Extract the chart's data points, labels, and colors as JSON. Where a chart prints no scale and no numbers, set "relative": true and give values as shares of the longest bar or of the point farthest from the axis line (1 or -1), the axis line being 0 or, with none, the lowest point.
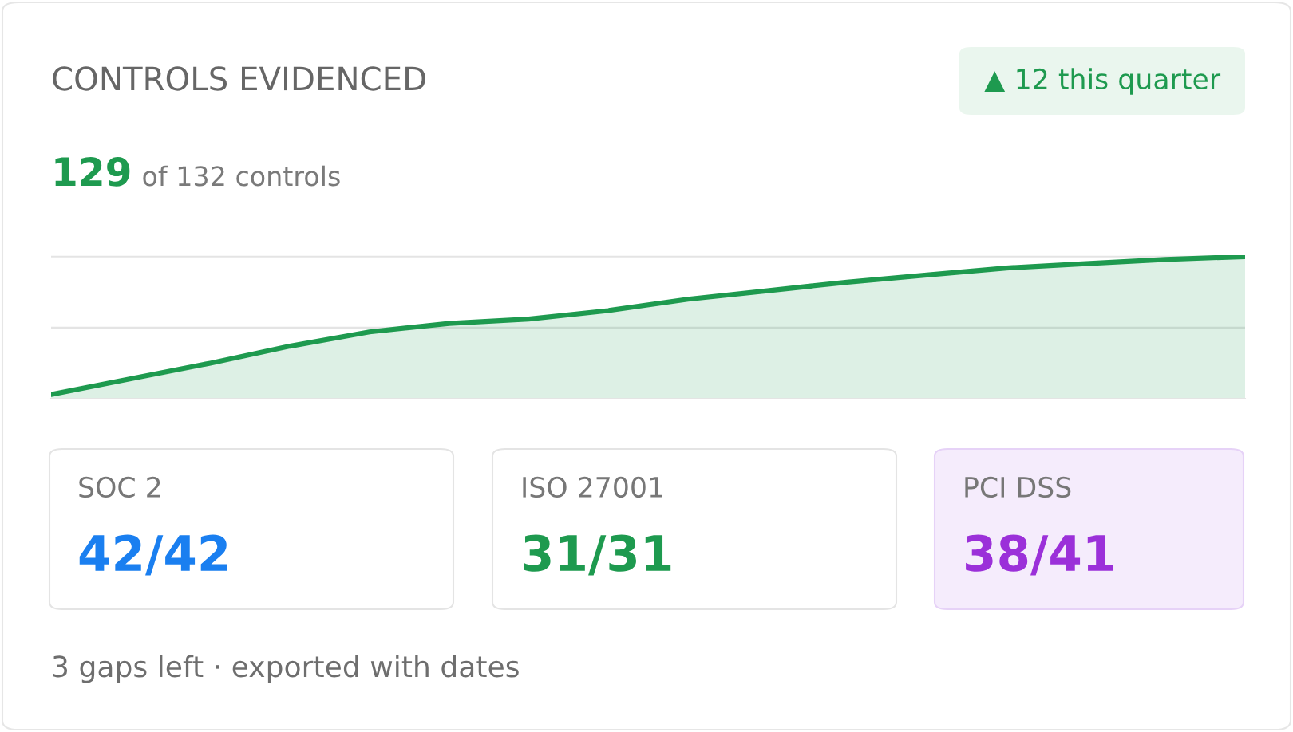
{
  "chart_data": [
    {
      "type": "area",
      "title": "CONTROLS EVIDENCED",
      "subtitle": "129 of 132 controls",
      "relative": true,
      "ref_lines": [
        {
          "axis": "y",
          "value": 0.5,
          "color": "#e4e4e4"
        },
        {
          "axis": "y",
          "value": 1,
          "color": "#e4e4e4"
        }
      ],
      "annotations": [
        "▲ 12 this quarter",
        "3 gaps left · exported with dates"
      ],
      "categories": [
        null,
        null,
        null,
        null,
        null,
        null,
        null,
        null,
        null,
        null,
        null,
        null,
        null,
        null,
        null,
        null
      ],
      "series": [
        {
          "color": "#1e9a4f",
          "values": [
            0.03,
            0.14,
            0.25,
            0.37,
            0.47,
            0.53,
            0.56,
            0.62,
            0.7,
            0.76,
            0.82,
            0.87,
            0.92,
            0.95,
            0.98,
            1
          ]
        }
      ]
    },
    {
      "type": "other",
      "categories": [
        "SOC 2",
        "ISO 27001",
        "PCI DSS"
      ],
      "value_labels": [
        "42/42",
        "31/31",
        "38/41"
      ],
      "colors": [
        "#1a7ff0",
        "#1e9a4f",
        "#9b30d9"
      ]
    }
  ]
}
